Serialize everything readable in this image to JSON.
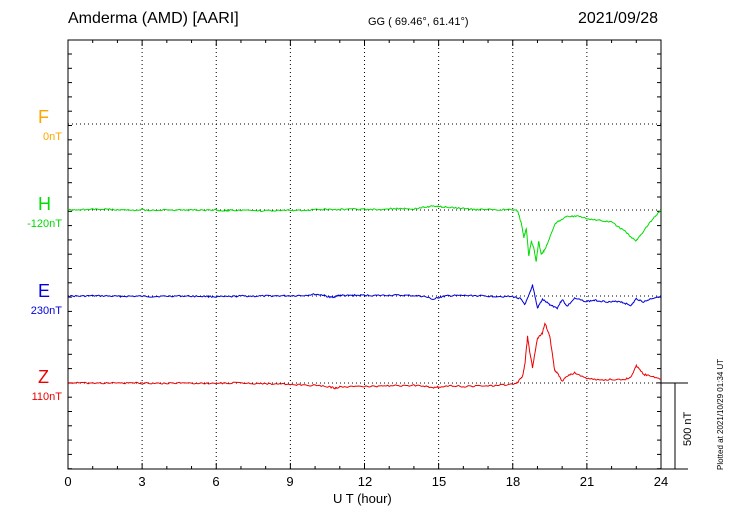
{
  "header": {
    "title": "Amderma (AMD)  [AARI]",
    "coords": "GG ( 69.46°,  61.41°)",
    "date": "2021/09/28"
  },
  "footer": {
    "plotted": "Plotted at 2021/10/29 01:34 UT"
  },
  "chart_data": {
    "type": "line",
    "xlabel": "U T (hour)",
    "xlim": [
      0,
      24
    ],
    "xticks": [
      "0",
      "3",
      "6",
      "9",
      "12",
      "15",
      "18",
      "21",
      "24"
    ],
    "grid": true,
    "scale_bar": {
      "label": "500 nT",
      "value_nT": 500
    },
    "channels": [
      {
        "name": "F",
        "baseline": "0nT",
        "color": "#ffa500",
        "values": []
      },
      {
        "name": "H",
        "baseline": "-120nT",
        "color": "#00dd00",
        "x": [
          0,
          0.5,
          1,
          1.5,
          2,
          2.5,
          3,
          3.5,
          4,
          4.5,
          5,
          5.5,
          6,
          6.3,
          6.5,
          6.7,
          7,
          7.5,
          8,
          8.5,
          9,
          9.5,
          10,
          10.5,
          11,
          11.5,
          12,
          12.5,
          13,
          13.5,
          14,
          14.3,
          14.6,
          14.9,
          15.2,
          15.5,
          16,
          16.5,
          17,
          17.5,
          18,
          18.2,
          18.35,
          18.45,
          18.55,
          18.65,
          18.75,
          18.85,
          18.95,
          19.05,
          19.15,
          19.3,
          19.5,
          19.7,
          19.9,
          20.2,
          20.6,
          21,
          21.5,
          22,
          22.3,
          22.6,
          22.8,
          23,
          23.2,
          23.5,
          23.8,
          24
        ],
        "values": [
          -120,
          -118,
          -117,
          -116,
          -118,
          -120,
          -119,
          -121,
          -120,
          -121,
          -120,
          -122,
          -121,
          -125,
          -123,
          -121,
          -123,
          -124,
          -125,
          -123,
          -122,
          -121,
          -118,
          -116,
          -117,
          -115,
          -116,
          -118,
          -113,
          -110,
          -114,
          -106,
          -100,
          -96,
          -102,
          -105,
          -110,
          -117,
          -118,
          -118,
          -118,
          -125,
          -200,
          -280,
          -230,
          -390,
          -300,
          -340,
          -420,
          -300,
          -380,
          -350,
          -280,
          -200,
          -180,
          -155,
          -155,
          -170,
          -180,
          -190,
          -220,
          -250,
          -280,
          -300,
          -260,
          -200,
          -150,
          -120
        ]
      },
      {
        "name": "E",
        "baseline": "230nT",
        "color": "#0000dd",
        "x": [
          0,
          0.5,
          1,
          1.5,
          2,
          2.5,
          3,
          3.5,
          4,
          4.5,
          5,
          5.5,
          6,
          6.5,
          7,
          7.5,
          8,
          8.5,
          9,
          9.5,
          10,
          10.3,
          10.6,
          10.8,
          11,
          11.3,
          11.6,
          12,
          12.5,
          13,
          13.5,
          14,
          14.4,
          14.8,
          15,
          15.3,
          15.6,
          16,
          16.5,
          17,
          17.5,
          18,
          18.3,
          18.5,
          18.7,
          18.8,
          19,
          19.2,
          19.5,
          19.8,
          20,
          20.2,
          20.5,
          21,
          21.3,
          21.6,
          22,
          22.3,
          22.6,
          22.8,
          23,
          23.3,
          23.6,
          24
        ],
        "values": [
          230,
          229,
          231,
          230,
          228,
          229,
          228,
          227,
          229,
          230,
          229,
          228,
          226,
          225,
          230,
          229,
          230,
          231,
          232,
          233,
          240,
          236,
          222,
          226,
          235,
          232,
          234,
          234,
          233,
          235,
          234,
          232,
          228,
          210,
          222,
          230,
          232,
          233,
          232,
          229,
          228,
          226,
          215,
          180,
          250,
          295,
          160,
          210,
          180,
          160,
          210,
          170,
          215,
          198,
          205,
          200,
          195,
          200,
          185,
          175,
          215,
          195,
          215,
          230
        ]
      },
      {
        "name": "Z",
        "baseline": "110nT",
        "color": "#ee0000",
        "x": [
          0,
          0.5,
          1,
          1.5,
          2,
          2.5,
          3,
          3.5,
          4,
          4.5,
          5,
          5.5,
          6,
          6.5,
          7,
          7.5,
          8,
          8.5,
          9,
          9.5,
          10,
          10.5,
          10.8,
          11,
          11.5,
          12,
          12.5,
          13,
          13.5,
          14,
          14.5,
          14.8,
          15,
          15.5,
          16,
          16.5,
          17,
          17.5,
          18,
          18.2,
          18.4,
          18.5,
          18.6,
          18.7,
          18.8,
          19,
          19.2,
          19.3,
          19.5,
          19.7,
          19.8,
          20,
          20.2,
          20.5,
          21,
          21.5,
          22,
          22.5,
          22.8,
          23,
          23.3,
          23.6,
          24
        ],
        "values": [
          112,
          110,
          109,
          110,
          110,
          109,
          110,
          109,
          108,
          110,
          109,
          108,
          108,
          110,
          110,
          108,
          106,
          104,
          101,
          98,
          95,
          90,
          80,
          88,
          90,
          90,
          92,
          94,
          95,
          96,
          90,
          82,
          88,
          95,
          90,
          92,
          94,
          97,
          104,
          115,
          150,
          230,
          380,
          280,
          200,
          370,
          400,
          460,
          380,
          180,
          170,
          120,
          150,
          170,
          135,
          128,
          132,
          130,
          145,
          210,
          160,
          150,
          135
        ]
      }
    ]
  }
}
